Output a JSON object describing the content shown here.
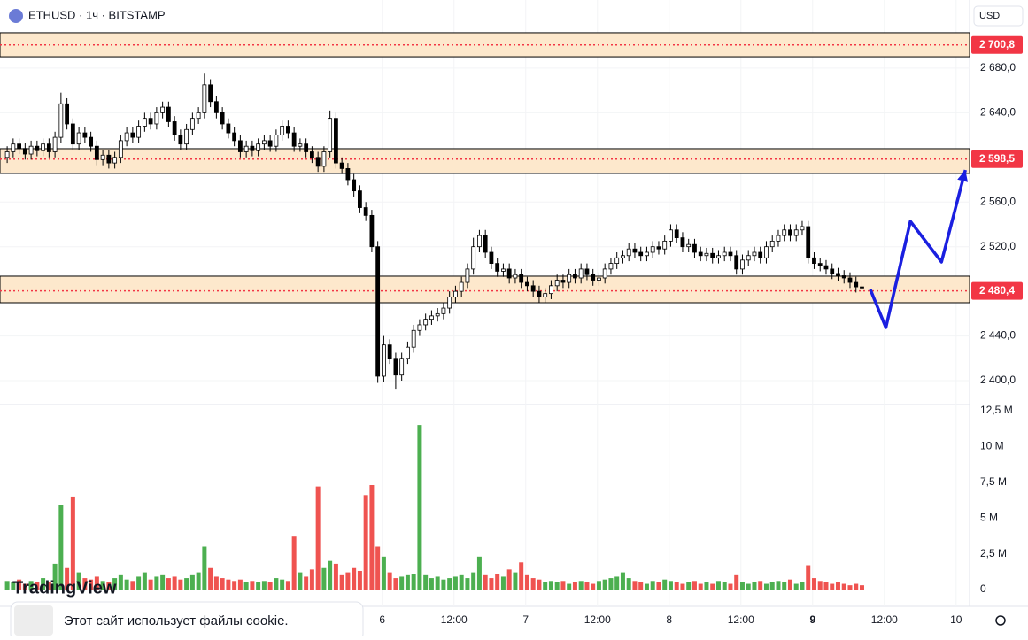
{
  "header": {
    "symbol": "ETHUSD · 1ч · BITSTAMP",
    "currency": "USD"
  },
  "chart_data": {
    "type": "candlestick",
    "xlim": [
      -1.2,
      161
    ],
    "xticks": [
      {
        "value": 62.75,
        "label": "6"
      },
      {
        "value": 74.75,
        "label": "12:00"
      },
      {
        "value": 86.75,
        "label": "7"
      },
      {
        "value": 98.75,
        "label": "12:00"
      },
      {
        "value": 110.75,
        "label": "8"
      },
      {
        "value": 122.75,
        "label": "12:00"
      },
      {
        "value": 134.75,
        "label": "9"
      },
      {
        "value": 146.75,
        "label": "12:00"
      },
      {
        "value": 158.75,
        "label": "10"
      }
    ],
    "ylim": [
      2378.6,
      2741
    ],
    "yticks": [
      {
        "value": 2400,
        "label": "2 400,0"
      },
      {
        "value": 2440,
        "label": "2 440,0"
      },
      {
        "value": 2480,
        "label": "2 480,0"
      },
      {
        "value": 2520,
        "label": "2 520,0"
      },
      {
        "value": 2560,
        "label": "2 560,0"
      },
      {
        "value": 2600,
        "label": "2 600,0"
      },
      {
        "value": 2640,
        "label": "2 640,0"
      },
      {
        "value": 2680,
        "label": "2 680,0"
      }
    ],
    "open": [
      2600,
      2605,
      2612,
      2608,
      2603,
      2610,
      2606,
      2612,
      2605,
      2618,
      2648,
      2630,
      2612,
      2622,
      2618,
      2610,
      2598,
      2602,
      2595,
      2600,
      2615,
      2622,
      2618,
      2628,
      2635,
      2630,
      2640,
      2645,
      2632,
      2620,
      2612,
      2625,
      2635,
      2640,
      2665,
      2650,
      2640,
      2630,
      2622,
      2615,
      2605,
      2610,
      2606,
      2612,
      2615,
      2610,
      2620,
      2628,
      2622,
      2610,
      2612,
      2605,
      2600,
      2592,
      2605,
      2635,
      2595,
      2590,
      2580,
      2570,
      2555,
      2548,
      2520,
      2404,
      2432,
      2420,
      2405,
      2420,
      2430,
      2445,
      2450,
      2455,
      2458,
      2460,
      2465,
      2475,
      2480,
      2488,
      2500,
      2520,
      2530,
      2515,
      2505,
      2498,
      2500,
      2492,
      2495,
      2488,
      2485,
      2480,
      2475,
      2478,
      2485,
      2490,
      2488,
      2495,
      2492,
      2500,
      2495,
      2490,
      2492,
      2500,
      2505,
      2510,
      2512,
      2518,
      2515,
      2512,
      2515,
      2520,
      2518,
      2525,
      2535,
      2528,
      2520,
      2522,
      2515,
      2512,
      2514,
      2510,
      2512,
      2515,
      2512,
      2500,
      2508,
      2512,
      2515,
      2510,
      2520,
      2525,
      2530,
      2535,
      2530,
      2535,
      2538,
      2510,
      2505,
      2503,
      2500,
      2496,
      2494,
      2492,
      2488,
      2484
    ],
    "high": [
      2610,
      2617,
      2617,
      2613,
      2615,
      2615,
      2617,
      2617,
      2623,
      2658,
      2653,
      2635,
      2627,
      2627,
      2623,
      2615,
      2607,
      2607,
      2605,
      2620,
      2627,
      2627,
      2633,
      2640,
      2640,
      2645,
      2650,
      2650,
      2637,
      2625,
      2630,
      2640,
      2645,
      2675,
      2670,
      2655,
      2645,
      2635,
      2627,
      2620,
      2615,
      2615,
      2617,
      2620,
      2620,
      2625,
      2633,
      2633,
      2627,
      2617,
      2617,
      2610,
      2605,
      2610,
      2642,
      2640,
      2600,
      2595,
      2585,
      2575,
      2560,
      2553,
      2525,
      2440,
      2437,
      2425,
      2425,
      2435,
      2450,
      2455,
      2460,
      2463,
      2465,
      2470,
      2480,
      2485,
      2493,
      2505,
      2528,
      2535,
      2535,
      2520,
      2510,
      2505,
      2505,
      2500,
      2500,
      2493,
      2490,
      2485,
      2483,
      2490,
      2495,
      2495,
      2500,
      2500,
      2505,
      2505,
      2500,
      2497,
      2505,
      2510,
      2515,
      2517,
      2523,
      2523,
      2520,
      2520,
      2525,
      2525,
      2530,
      2540,
      2540,
      2533,
      2527,
      2527,
      2520,
      2519,
      2519,
      2517,
      2520,
      2520,
      2517,
      2513,
      2517,
      2520,
      2520,
      2525,
      2530,
      2535,
      2540,
      2540,
      2540,
      2543,
      2543,
      2515,
      2510,
      2508,
      2505,
      2501,
      2499,
      2497,
      2493,
      2489
    ],
    "low": [
      2595,
      2600,
      2603,
      2598,
      2598,
      2601,
      2601,
      2600,
      2600,
      2613,
      2625,
      2607,
      2607,
      2613,
      2605,
      2593,
      2593,
      2590,
      2590,
      2595,
      2610,
      2613,
      2613,
      2623,
      2625,
      2625,
      2635,
      2627,
      2615,
      2607,
      2607,
      2620,
      2630,
      2635,
      2645,
      2635,
      2625,
      2617,
      2610,
      2600,
      2600,
      2601,
      2601,
      2607,
      2605,
      2605,
      2615,
      2617,
      2605,
      2605,
      2600,
      2595,
      2587,
      2587,
      2600,
      2590,
      2585,
      2575,
      2565,
      2550,
      2543,
      2515,
      2398,
      2399,
      2415,
      2392,
      2400,
      2415,
      2425,
      2440,
      2445,
      2450,
      2453,
      2455,
      2460,
      2470,
      2475,
      2483,
      2495,
      2515,
      2510,
      2500,
      2493,
      2493,
      2487,
      2487,
      2483,
      2480,
      2475,
      2470,
      2470,
      2473,
      2480,
      2483,
      2483,
      2487,
      2487,
      2490,
      2485,
      2485,
      2487,
      2495,
      2500,
      2505,
      2507,
      2510,
      2507,
      2507,
      2510,
      2513,
      2513,
      2520,
      2523,
      2515,
      2515,
      2510,
      2507,
      2507,
      2505,
      2505,
      2507,
      2507,
      2495,
      2495,
      2503,
      2507,
      2505,
      2505,
      2515,
      2520,
      2525,
      2525,
      2525,
      2530,
      2505,
      2500,
      2498,
      2495,
      2491,
      2489,
      2487,
      2483,
      2479,
      2478
    ],
    "close": [
      2605,
      2612,
      2608,
      2603,
      2610,
      2606,
      2612,
      2605,
      2618,
      2648,
      2630,
      2612,
      2622,
      2618,
      2610,
      2598,
      2602,
      2595,
      2600,
      2615,
      2622,
      2618,
      2628,
      2635,
      2630,
      2640,
      2645,
      2632,
      2620,
      2612,
      2625,
      2635,
      2640,
      2665,
      2650,
      2640,
      2630,
      2622,
      2615,
      2605,
      2610,
      2606,
      2612,
      2615,
      2610,
      2620,
      2628,
      2622,
      2610,
      2612,
      2605,
      2600,
      2592,
      2605,
      2635,
      2595,
      2590,
      2580,
      2570,
      2555,
      2548,
      2520,
      2404,
      2432,
      2420,
      2405,
      2420,
      2430,
      2445,
      2450,
      2455,
      2458,
      2460,
      2465,
      2475,
      2480,
      2488,
      2500,
      2520,
      2530,
      2515,
      2505,
      2498,
      2500,
      2492,
      2495,
      2488,
      2485,
      2480,
      2475,
      2478,
      2485,
      2490,
      2488,
      2495,
      2492,
      2500,
      2495,
      2490,
      2492,
      2500,
      2505,
      2510,
      2512,
      2518,
      2515,
      2512,
      2515,
      2520,
      2518,
      2525,
      2535,
      2528,
      2520,
      2522,
      2515,
      2512,
      2514,
      2510,
      2512,
      2515,
      2512,
      2500,
      2508,
      2512,
      2515,
      2510,
      2520,
      2525,
      2530,
      2535,
      2530,
      2535,
      2538,
      2510,
      2505,
      2503,
      2500,
      2496,
      2494,
      2492,
      2488,
      2484,
      2483
    ],
    "up_color": "#ffffff",
    "down_color": "#000000",
    "volume": {
      "values": [
        0.6,
        0.5,
        0.7,
        0.4,
        0.6,
        0.5,
        0.8,
        0.5,
        1.8,
        5.9,
        1.5,
        6.5,
        1.2,
        0.8,
        0.7,
        0.9,
        0.6,
        0.5,
        0.8,
        1.0,
        0.7,
        0.6,
        0.9,
        1.2,
        0.7,
        0.9,
        1.0,
        0.8,
        0.9,
        0.7,
        0.8,
        1.0,
        1.2,
        3.0,
        1.5,
        0.9,
        0.8,
        0.7,
        0.6,
        0.7,
        0.5,
        0.6,
        0.5,
        0.6,
        0.5,
        0.8,
        0.7,
        0.6,
        3.7,
        1.2,
        0.9,
        1.4,
        7.2,
        1.5,
        2.0,
        1.8,
        1.0,
        1.2,
        1.5,
        1.3,
        6.6,
        7.3,
        3.0,
        2.3,
        1.2,
        0.8,
        0.9,
        1.0,
        1.1,
        11.5,
        1.0,
        0.8,
        0.9,
        0.7,
        0.8,
        0.9,
        1.0,
        0.8,
        1.2,
        2.3,
        1.0,
        0.8,
        1.1,
        0.9,
        1.4,
        1.2,
        1.9,
        1.0,
        0.8,
        0.7,
        0.5,
        0.6,
        0.5,
        0.6,
        0.4,
        0.5,
        0.6,
        0.5,
        0.4,
        0.6,
        0.7,
        0.8,
        0.9,
        1.2,
        0.8,
        0.6,
        0.5,
        0.4,
        0.6,
        0.5,
        0.7,
        0.6,
        0.5,
        0.4,
        0.5,
        0.6,
        0.4,
        0.5,
        0.4,
        0.6,
        0.5,
        0.4,
        1.0,
        0.5,
        0.4,
        0.5,
        0.6,
        0.4,
        0.5,
        0.6,
        0.5,
        0.7,
        0.4,
        0.5,
        1.7,
        0.8,
        0.6,
        0.5,
        0.4,
        0.5,
        0.4,
        0.3,
        0.4,
        0.3
      ],
      "ylim": [
        0,
        12.93
      ],
      "yticks": [
        0,
        {
          "value": 2.5,
          "label": "2,5 M"
        },
        {
          "value": 5,
          "label": "5 M"
        },
        {
          "value": 7.5,
          "label": "7,5 M"
        },
        {
          "value": 10,
          "label": "10 M"
        },
        {
          "value": 12.5,
          "label": "12,5 M"
        }
      ],
      "up_color": "#4caf50",
      "down_color": "#ef5350"
    },
    "zones": [
      {
        "level": {
          "value": 2700.8,
          "label": "2 700,8"
        },
        "top": 2711.7,
        "bottom": 2690.2
      },
      {
        "level": {
          "value": 2598.5,
          "label": "2 598,5"
        },
        "top": 2607.8,
        "bottom": 2585.6
      },
      {
        "level": {
          "value": 2480.4,
          "label": "2 480,4"
        },
        "top": 2493.6,
        "bottom": 2469.8
      }
    ],
    "zone_color": "#fde8cc",
    "level_color": "#f23645",
    "forecast": {
      "x": [
        144.4,
        147,
        151.1,
        156.3,
        160.3
      ],
      "y": [
        2481.7,
        2447.6,
        2542.7,
        2506.3,
        2588.7
      ],
      "color": "#1a1fe0"
    }
  },
  "branding": "TradingView",
  "cookie_notice": "Этот сайт использует файлы cookie."
}
